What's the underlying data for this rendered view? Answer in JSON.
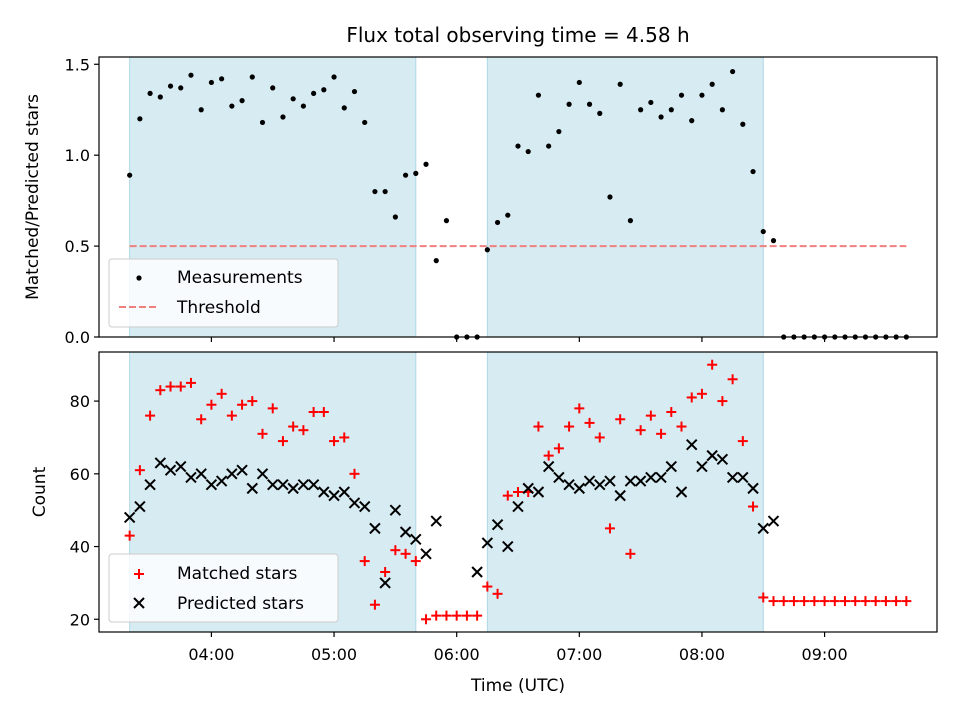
{
  "chart_data": {
    "title": "Flux total observing time = 4.58 h",
    "colors": {
      "span": "#add8e6",
      "measurement": "#000000",
      "threshold": "#f08080",
      "matched": "#ff0000",
      "predicted": "#000000"
    },
    "x_unit": "minutes after 00:00 UTC",
    "xlim": [
      185,
      595
    ],
    "xticks": [
      {
        "value": 240,
        "label": "04:00"
      },
      {
        "value": 300,
        "label": "05:00"
      },
      {
        "value": 360,
        "label": "06:00"
      },
      {
        "value": 420,
        "label": "07:00"
      },
      {
        "value": 480,
        "label": "08:00"
      },
      {
        "value": 540,
        "label": "09:00"
      }
    ],
    "xlabel": "Time (UTC)",
    "spans": [
      [
        200,
        340
      ],
      [
        375,
        510
      ]
    ],
    "panels": [
      {
        "type": "scatter",
        "ylabel": "Matched/Predicted stars",
        "ylim": [
          0,
          1.54
        ],
        "yticks": [
          {
            "value": 0,
            "label": "0.0"
          },
          {
            "value": 0.5,
            "label": "0.5"
          },
          {
            "value": 1.0,
            "label": "1.0"
          },
          {
            "value": 1.5,
            "label": "1.5"
          }
        ],
        "legend_position": "lower-left",
        "threshold": {
          "name": "Threshold",
          "value": 0.5,
          "x_range": [
            200,
            580
          ]
        },
        "series": [
          {
            "name": "Measurements",
            "marker": "dot",
            "x": [
              200,
              205,
              210,
              215,
              220,
              225,
              230,
              235,
              240,
              245,
              250,
              255,
              260,
              265,
              270,
              275,
              280,
              285,
              290,
              295,
              300,
              305,
              310,
              315,
              320,
              325,
              330,
              335,
              340,
              345,
              350,
              355,
              360,
              365,
              370,
              375,
              380,
              385,
              390,
              395,
              400,
              405,
              410,
              415,
              420,
              425,
              430,
              435,
              440,
              445,
              450,
              455,
              460,
              465,
              470,
              475,
              480,
              485,
              490,
              495,
              500,
              505,
              510,
              515,
              520,
              525,
              530,
              535,
              540,
              545,
              550,
              555,
              560,
              565,
              570,
              575,
              580
            ],
            "y": [
              0.89,
              1.2,
              1.34,
              1.32,
              1.38,
              1.37,
              1.44,
              1.25,
              1.4,
              1.42,
              1.27,
              1.3,
              1.43,
              1.18,
              1.37,
              1.21,
              1.31,
              1.27,
              1.34,
              1.36,
              1.43,
              1.26,
              1.35,
              1.18,
              0.8,
              0.8,
              0.66,
              0.89,
              0.9,
              0.95,
              0.42,
              0.64,
              0,
              0,
              0,
              0.48,
              0.63,
              0.67,
              1.05,
              1.02,
              1.33,
              1.05,
              1.13,
              1.28,
              1.4,
              1.28,
              1.23,
              0.77,
              1.39,
              0.64,
              1.25,
              1.29,
              1.21,
              1.25,
              1.33,
              1.19,
              1.33,
              1.39,
              1.25,
              1.46,
              1.17,
              0.91,
              0.58,
              0.53,
              0,
              0,
              0,
              0,
              0,
              0,
              0,
              0,
              0,
              0,
              0,
              0,
              0
            ]
          }
        ]
      },
      {
        "type": "scatter",
        "ylabel": "Count",
        "ylim": [
          16.5,
          93.5
        ],
        "yticks": [
          {
            "value": 20,
            "label": "20"
          },
          {
            "value": 40,
            "label": "40"
          },
          {
            "value": 60,
            "label": "60"
          },
          {
            "value": 80,
            "label": "80"
          }
        ],
        "legend_position": "lower-left",
        "series": [
          {
            "name": "Matched stars",
            "marker": "plus",
            "x": [
              200,
              205,
              210,
              215,
              220,
              225,
              230,
              235,
              240,
              245,
              250,
              255,
              260,
              265,
              270,
              275,
              280,
              285,
              290,
              295,
              300,
              305,
              310,
              315,
              320,
              325,
              330,
              335,
              340,
              345,
              350,
              355,
              360,
              365,
              370,
              375,
              380,
              385,
              390,
              395,
              400,
              405,
              410,
              415,
              420,
              425,
              430,
              435,
              440,
              445,
              450,
              455,
              460,
              465,
              470,
              475,
              480,
              485,
              490,
              495,
              500,
              505,
              510,
              515,
              520,
              525,
              530,
              535,
              540,
              545,
              550,
              555,
              560,
              565,
              570,
              575,
              580
            ],
            "y": [
              43,
              61,
              76,
              83,
              84,
              84,
              85,
              75,
              79,
              82,
              76,
              79,
              80,
              71,
              78,
              69,
              73,
              72,
              77,
              77,
              69,
              70,
              60,
              36,
              24,
              33,
              39,
              38,
              36,
              20,
              21,
              21,
              21,
              21,
              21,
              29,
              27,
              54,
              55,
              55,
              73,
              65,
              67,
              73,
              78,
              74,
              70,
              45,
              75,
              38,
              72,
              76,
              71,
              77,
              73,
              81,
              82,
              90,
              80,
              86,
              69,
              51,
              26,
              25,
              25,
              25,
              25,
              25,
              25,
              25,
              25,
              25,
              25,
              25,
              25,
              25,
              25
            ]
          },
          {
            "name": "Predicted stars",
            "marker": "x",
            "x": [
              200,
              205,
              210,
              215,
              220,
              225,
              230,
              235,
              240,
              245,
              250,
              255,
              260,
              265,
              270,
              275,
              280,
              285,
              290,
              295,
              300,
              305,
              310,
              315,
              320,
              325,
              330,
              335,
              340,
              345,
              350,
              370,
              375,
              380,
              385,
              390,
              395,
              400,
              405,
              410,
              415,
              420,
              425,
              430,
              435,
              440,
              445,
              450,
              455,
              460,
              465,
              470,
              475,
              480,
              485,
              490,
              495,
              500,
              505,
              510,
              515
            ],
            "y": [
              48,
              51,
              57,
              63,
              61,
              62,
              59,
              60,
              57,
              58,
              60,
              61,
              56,
              60,
              57,
              57,
              56,
              57,
              57,
              55,
              54,
              55,
              52,
              51,
              45,
              30,
              50,
              44,
              42,
              38,
              47,
              33,
              41,
              46,
              40,
              51,
              56,
              55,
              62,
              59,
              57,
              56,
              58,
              57,
              58,
              54,
              58,
              58,
              59,
              59,
              62,
              55,
              68,
              62,
              65,
              64,
              59,
              59,
              56,
              45,
              47
            ]
          }
        ]
      }
    ]
  }
}
